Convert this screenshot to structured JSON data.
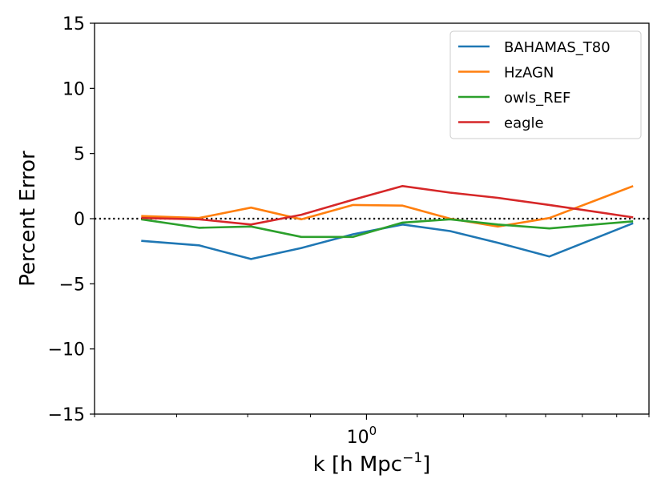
{
  "chart_data": {
    "type": "line",
    "x_scale": "log",
    "xlim": [
      0.6,
      1.7
    ],
    "ylim": [
      -15,
      15
    ],
    "xlabel": "k [h Mpc",
    "xlabel_sup": "−1",
    "xlabel_suffix": "]",
    "ylabel": "Percent Error",
    "x_major_ticks": [
      {
        "value": 1.0,
        "label": "10",
        "sup": "0"
      }
    ],
    "y_ticks": [
      {
        "value": 15,
        "label": "15"
      },
      {
        "value": 10,
        "label": "10"
      },
      {
        "value": 5,
        "label": "5"
      },
      {
        "value": 0,
        "label": "0"
      },
      {
        "value": -5,
        "label": "−5"
      },
      {
        "value": -10,
        "label": "−10"
      },
      {
        "value": -15,
        "label": "−15"
      }
    ],
    "x_minor_ticks": [
      0.6,
      0.7,
      0.8,
      0.9,
      1.1,
      1.2,
      1.3,
      1.4,
      1.5,
      1.6,
      1.7
    ],
    "reference_line": {
      "y": 0,
      "style": "dotted",
      "color": "#000000"
    },
    "legend_position": "top-right",
    "x": [
      0.655,
      0.73,
      0.805,
      0.885,
      0.975,
      1.07,
      1.17,
      1.28,
      1.41,
      1.65
    ],
    "series": [
      {
        "name": "BAHAMAS_T80",
        "color": "#1f77b4",
        "values": [
          -1.7,
          -2.05,
          -3.1,
          -2.25,
          -1.2,
          -0.45,
          -0.95,
          -1.85,
          -2.9,
          -0.35
        ]
      },
      {
        "name": "HzAGN",
        "color": "#ff7f0e",
        "values": [
          0.2,
          0.05,
          0.85,
          -0.05,
          1.05,
          1.0,
          0.0,
          -0.6,
          0.05,
          2.5
        ]
      },
      {
        "name": "owls_REF",
        "color": "#2ca02c",
        "values": [
          -0.05,
          -0.7,
          -0.6,
          -1.4,
          -1.4,
          -0.3,
          -0.05,
          -0.45,
          -0.75,
          -0.2
        ]
      },
      {
        "name": "eagle",
        "color": "#d62728",
        "values": [
          0.05,
          -0.05,
          -0.45,
          0.3,
          1.45,
          2.5,
          2.0,
          1.6,
          1.05,
          0.1
        ]
      }
    ]
  }
}
